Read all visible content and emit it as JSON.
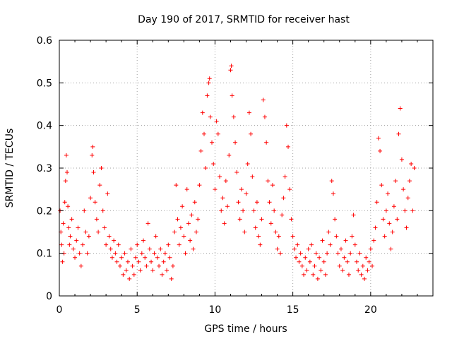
{
  "chart_data": {
    "type": "scatter",
    "title": "Day 190 of 2017, SRMTID for receiver hast",
    "xlabel": "GPS time / hours",
    "ylabel": "SRMTID / TECUs",
    "xlim": [
      0,
      24
    ],
    "ylim": [
      0,
      0.6
    ],
    "xticks": [
      0,
      5,
      10,
      15,
      20
    ],
    "xtick_labels": [
      "0",
      "5",
      "10",
      "15",
      "20"
    ],
    "yticks": [
      0,
      0.1,
      0.2,
      0.3,
      0.4,
      0.5,
      0.6
    ],
    "ytick_labels": [
      "0",
      "0.1",
      "0.2",
      "0.3",
      "0.4",
      "0.5",
      "0.6"
    ],
    "grid": true,
    "marker": "+",
    "color": "#ff0000",
    "series": [
      {
        "name": "SRMTID",
        "points": [
          [
            0.05,
            0.2
          ],
          [
            0.1,
            0.15
          ],
          [
            0.15,
            0.12
          ],
          [
            0.2,
            0.08
          ],
          [
            0.25,
            0.17
          ],
          [
            0.3,
            0.1
          ],
          [
            0.35,
            0.22
          ],
          [
            0.4,
            0.27
          ],
          [
            0.45,
            0.33
          ],
          [
            0.5,
            0.29
          ],
          [
            0.55,
            0.21
          ],
          [
            0.6,
            0.16
          ],
          [
            0.65,
            0.12
          ],
          [
            0.7,
            0.14
          ],
          [
            0.8,
            0.18
          ],
          [
            0.9,
            0.11
          ],
          [
            1.0,
            0.09
          ],
          [
            1.1,
            0.13
          ],
          [
            1.2,
            0.16
          ],
          [
            1.3,
            0.1
          ],
          [
            1.4,
            0.07
          ],
          [
            1.5,
            0.12
          ],
          [
            1.6,
            0.2
          ],
          [
            1.7,
            0.15
          ],
          [
            1.8,
            0.1
          ],
          [
            1.9,
            0.14
          ],
          [
            2.0,
            0.23
          ],
          [
            2.1,
            0.33
          ],
          [
            2.15,
            0.35
          ],
          [
            2.2,
            0.29
          ],
          [
            2.3,
            0.22
          ],
          [
            2.4,
            0.18
          ],
          [
            2.5,
            0.15
          ],
          [
            2.6,
            0.26
          ],
          [
            2.7,
            0.3
          ],
          [
            2.8,
            0.2
          ],
          [
            2.9,
            0.16
          ],
          [
            3.0,
            0.12
          ],
          [
            3.1,
            0.24
          ],
          [
            3.2,
            0.14
          ],
          [
            3.3,
            0.11
          ],
          [
            3.4,
            0.09
          ],
          [
            3.5,
            0.13
          ],
          [
            3.6,
            0.1
          ],
          [
            3.7,
            0.08
          ],
          [
            3.8,
            0.12
          ],
          [
            3.9,
            0.07
          ],
          [
            4.0,
            0.09
          ],
          [
            4.1,
            0.05
          ],
          [
            4.2,
            0.1
          ],
          [
            4.3,
            0.06
          ],
          [
            4.4,
            0.08
          ],
          [
            4.5,
            0.04
          ],
          [
            4.6,
            0.11
          ],
          [
            4.7,
            0.07
          ],
          [
            4.8,
            0.05
          ],
          [
            4.9,
            0.09
          ],
          [
            5.0,
            0.12
          ],
          [
            5.1,
            0.08
          ],
          [
            5.2,
            0.06
          ],
          [
            5.3,
            0.1
          ],
          [
            5.4,
            0.13
          ],
          [
            5.5,
            0.09
          ],
          [
            5.6,
            0.07
          ],
          [
            5.7,
            0.17
          ],
          [
            5.8,
            0.11
          ],
          [
            5.9,
            0.08
          ],
          [
            6.0,
            0.06
          ],
          [
            6.1,
            0.1
          ],
          [
            6.2,
            0.14
          ],
          [
            6.3,
            0.09
          ],
          [
            6.4,
            0.07
          ],
          [
            6.5,
            0.11
          ],
          [
            6.6,
            0.05
          ],
          [
            6.7,
            0.08
          ],
          [
            6.8,
            0.1
          ],
          [
            6.9,
            0.06
          ],
          [
            7.0,
            0.12
          ],
          [
            7.1,
            0.09
          ],
          [
            7.2,
            0.04
          ],
          [
            7.3,
            0.07
          ],
          [
            7.4,
            0.15
          ],
          [
            7.5,
            0.26
          ],
          [
            7.6,
            0.18
          ],
          [
            7.7,
            0.12
          ],
          [
            7.8,
            0.16
          ],
          [
            7.9,
            0.21
          ],
          [
            8.0,
            0.14
          ],
          [
            8.1,
            0.1
          ],
          [
            8.2,
            0.25
          ],
          [
            8.3,
            0.17
          ],
          [
            8.4,
            0.13
          ],
          [
            8.5,
            0.19
          ],
          [
            8.6,
            0.11
          ],
          [
            8.7,
            0.22
          ],
          [
            8.8,
            0.15
          ],
          [
            8.9,
            0.18
          ],
          [
            9.0,
            0.26
          ],
          [
            9.1,
            0.34
          ],
          [
            9.2,
            0.43
          ],
          [
            9.3,
            0.38
          ],
          [
            9.4,
            0.3
          ],
          [
            9.5,
            0.47
          ],
          [
            9.6,
            0.5
          ],
          [
            9.65,
            0.51
          ],
          [
            9.7,
            0.42
          ],
          [
            9.8,
            0.36
          ],
          [
            9.9,
            0.31
          ],
          [
            10.0,
            0.25
          ],
          [
            10.1,
            0.41
          ],
          [
            10.2,
            0.38
          ],
          [
            10.3,
            0.28
          ],
          [
            10.4,
            0.2
          ],
          [
            10.5,
            0.23
          ],
          [
            10.6,
            0.17
          ],
          [
            10.7,
            0.27
          ],
          [
            10.8,
            0.21
          ],
          [
            10.9,
            0.33
          ],
          [
            11.0,
            0.53
          ],
          [
            11.05,
            0.54
          ],
          [
            11.1,
            0.47
          ],
          [
            11.2,
            0.42
          ],
          [
            11.3,
            0.36
          ],
          [
            11.4,
            0.29
          ],
          [
            11.5,
            0.22
          ],
          [
            11.6,
            0.18
          ],
          [
            11.7,
            0.25
          ],
          [
            11.8,
            0.2
          ],
          [
            11.9,
            0.15
          ],
          [
            12.0,
            0.24
          ],
          [
            12.1,
            0.31
          ],
          [
            12.2,
            0.43
          ],
          [
            12.3,
            0.38
          ],
          [
            12.4,
            0.28
          ],
          [
            12.5,
            0.2
          ],
          [
            12.6,
            0.16
          ],
          [
            12.7,
            0.22
          ],
          [
            12.8,
            0.14
          ],
          [
            12.9,
            0.12
          ],
          [
            13.0,
            0.18
          ],
          [
            13.1,
            0.46
          ],
          [
            13.2,
            0.42
          ],
          [
            13.3,
            0.36
          ],
          [
            13.4,
            0.27
          ],
          [
            13.5,
            0.22
          ],
          [
            13.6,
            0.17
          ],
          [
            13.7,
            0.26
          ],
          [
            13.8,
            0.2
          ],
          [
            13.9,
            0.15
          ],
          [
            14.0,
            0.11
          ],
          [
            14.1,
            0.14
          ],
          [
            14.2,
            0.1
          ],
          [
            14.3,
            0.19
          ],
          [
            14.4,
            0.23
          ],
          [
            14.5,
            0.28
          ],
          [
            14.6,
            0.4
          ],
          [
            14.7,
            0.35
          ],
          [
            14.8,
            0.25
          ],
          [
            14.9,
            0.18
          ],
          [
            15.0,
            0.14
          ],
          [
            15.1,
            0.11
          ],
          [
            15.2,
            0.09
          ],
          [
            15.3,
            0.12
          ],
          [
            15.4,
            0.08
          ],
          [
            15.5,
            0.1
          ],
          [
            15.6,
            0.07
          ],
          [
            15.7,
            0.05
          ],
          [
            15.8,
            0.09
          ],
          [
            15.9,
            0.06
          ],
          [
            16.0,
            0.11
          ],
          [
            16.1,
            0.08
          ],
          [
            16.2,
            0.12
          ],
          [
            16.3,
            0.05
          ],
          [
            16.4,
            0.07
          ],
          [
            16.5,
            0.1
          ],
          [
            16.6,
            0.04
          ],
          [
            16.7,
            0.09
          ],
          [
            16.8,
            0.06
          ],
          [
            16.9,
            0.13
          ],
          [
            17.0,
            0.08
          ],
          [
            17.1,
            0.05
          ],
          [
            17.2,
            0.1
          ],
          [
            17.3,
            0.15
          ],
          [
            17.4,
            0.12
          ],
          [
            17.5,
            0.27
          ],
          [
            17.6,
            0.24
          ],
          [
            17.7,
            0.18
          ],
          [
            17.8,
            0.14
          ],
          [
            17.9,
            0.1
          ],
          [
            18.0,
            0.07
          ],
          [
            18.1,
            0.11
          ],
          [
            18.2,
            0.06
          ],
          [
            18.3,
            0.09
          ],
          [
            18.4,
            0.13
          ],
          [
            18.5,
            0.08
          ],
          [
            18.6,
            0.05
          ],
          [
            18.7,
            0.1
          ],
          [
            18.8,
            0.14
          ],
          [
            18.9,
            0.19
          ],
          [
            19.0,
            0.12
          ],
          [
            19.1,
            0.08
          ],
          [
            19.2,
            0.06
          ],
          [
            19.3,
            0.1
          ],
          [
            19.4,
            0.05
          ],
          [
            19.5,
            0.07
          ],
          [
            19.6,
            0.04
          ],
          [
            19.7,
            0.09
          ],
          [
            19.8,
            0.06
          ],
          [
            19.9,
            0.08
          ],
          [
            20.0,
            0.11
          ],
          [
            20.1,
            0.07
          ],
          [
            20.2,
            0.13
          ],
          [
            20.3,
            0.16
          ],
          [
            20.4,
            0.22
          ],
          [
            20.5,
            0.37
          ],
          [
            20.6,
            0.34
          ],
          [
            20.7,
            0.26
          ],
          [
            20.8,
            0.18
          ],
          [
            20.9,
            0.14
          ],
          [
            21.0,
            0.2
          ],
          [
            21.1,
            0.24
          ],
          [
            21.2,
            0.17
          ],
          [
            21.3,
            0.11
          ],
          [
            21.4,
            0.15
          ],
          [
            21.5,
            0.21
          ],
          [
            21.6,
            0.27
          ],
          [
            21.7,
            0.18
          ],
          [
            21.8,
            0.38
          ],
          [
            21.9,
            0.44
          ],
          [
            22.0,
            0.32
          ],
          [
            22.1,
            0.25
          ],
          [
            22.2,
            0.2
          ],
          [
            22.3,
            0.16
          ],
          [
            22.4,
            0.23
          ],
          [
            22.5,
            0.27
          ],
          [
            22.6,
            0.31
          ],
          [
            22.7,
            0.2
          ],
          [
            22.8,
            0.3
          ]
        ]
      }
    ]
  }
}
